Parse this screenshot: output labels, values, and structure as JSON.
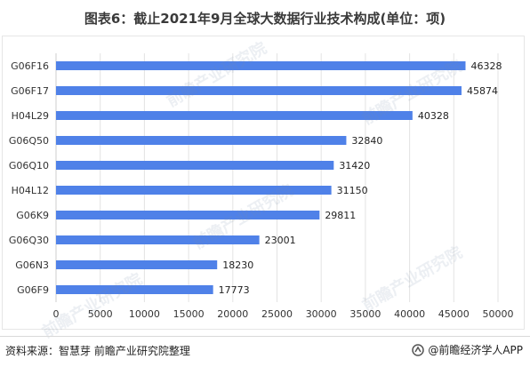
{
  "title": "图表6：截止2021年9月全球大数据行业技术构成(单位：项)",
  "source": "资料来源：智慧芽 前瞻产业研究院整理",
  "brand": "@前瞻经济学人APP",
  "watermark": "前瞻产业研究院",
  "colors": {
    "bar": "#4f81e8",
    "grid": "#e3e3e3",
    "axis": "#cccccc"
  },
  "chart_data": {
    "type": "bar",
    "orientation": "horizontal",
    "categories": [
      "G06F16",
      "G06F17",
      "H04L29",
      "G06Q50",
      "G06Q10",
      "H04L12",
      "G06K9",
      "G06Q30",
      "G06N3",
      "G06F9"
    ],
    "values": [
      46328,
      45874,
      40328,
      32840,
      31420,
      31150,
      29811,
      23001,
      18230,
      17773
    ],
    "xlim": [
      0,
      50000
    ],
    "xticks": [
      0,
      5000,
      10000,
      15000,
      20000,
      25000,
      30000,
      35000,
      40000,
      45000,
      50000
    ],
    "grid": true
  }
}
